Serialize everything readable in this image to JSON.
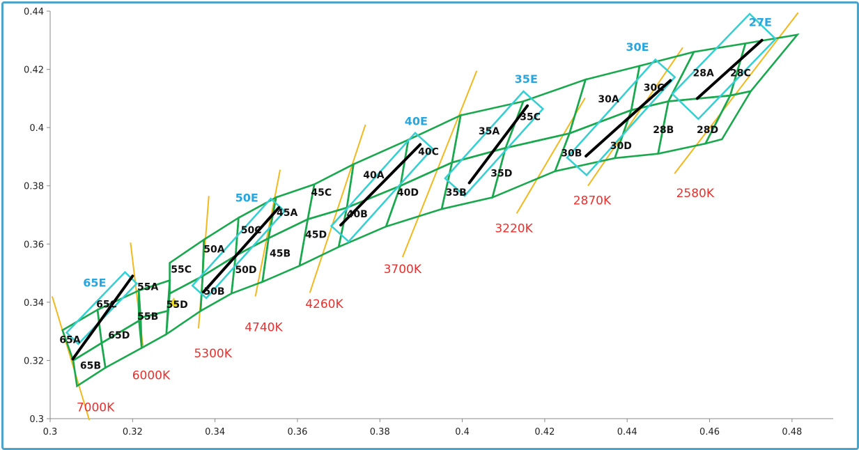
{
  "chart_data": {
    "type": "scatter",
    "title": "",
    "xlabel": "",
    "ylabel": "",
    "xlim": [
      0.3,
      0.49
    ],
    "ylim": [
      0.3,
      0.44
    ],
    "x_ticks": [
      "0.3",
      "0.32",
      "0.34",
      "0.36",
      "0.38",
      "0.4",
      "0.42",
      "0.44",
      "0.46",
      "0.48"
    ],
    "y_ticks": [
      "0.3",
      "0.32",
      "0.34",
      "0.36",
      "0.38",
      "0.4",
      "0.42",
      "0.44"
    ],
    "grid": false,
    "colors": {
      "quad": "#1aa84f",
      "ellipse": "#38cfd2",
      "cct_line": "#f2b81c",
      "cct_text": "#e8312f",
      "efficiency_text": "#27a6df",
      "bbl": "#000000",
      "marker": "#f4e31c"
    },
    "cct_lines": [
      {
        "label": "7000K",
        "p1": [
          0.3005,
          0.342
        ],
        "p2": [
          0.3095,
          0.2995
        ],
        "label_at": [
          0.311,
          0.304
        ]
      },
      {
        "label": "6000K",
        "p1": [
          0.3195,
          0.3605
        ],
        "p2": [
          0.3225,
          0.325
        ],
        "label_at": [
          0.3245,
          0.315
        ]
      },
      {
        "label": "5300K",
        "p1": [
          0.3385,
          0.3765
        ],
        "p2": [
          0.336,
          0.331
        ],
        "label_at": [
          0.3395,
          0.3225
        ]
      },
      {
        "label": "4740K",
        "p1": [
          0.3558,
          0.3855
        ],
        "p2": [
          0.3498,
          0.342
        ],
        "label_at": [
          0.3518,
          0.3315
        ]
      },
      {
        "label": "4260K",
        "p1": [
          0.3765,
          0.401
        ],
        "p2": [
          0.363,
          0.3432
        ],
        "label_at": [
          0.3665,
          0.3395
        ]
      },
      {
        "label": "3700K",
        "p1": [
          0.4035,
          0.4195
        ],
        "p2": [
          0.3855,
          0.3555
        ],
        "label_at": [
          0.3855,
          0.3515
        ]
      },
      {
        "label": "3220K",
        "p1": [
          0.4298,
          0.4102
        ],
        "p2": [
          0.4132,
          0.3705
        ],
        "label_at": [
          0.4125,
          0.3655
        ]
      },
      {
        "label": "2870K",
        "p1": [
          0.4535,
          0.4275
        ],
        "p2": [
          0.4305,
          0.38
        ],
        "label_at": [
          0.4315,
          0.375
        ]
      },
      {
        "label": "2580K",
        "p1": [
          0.4815,
          0.4395
        ],
        "p2": [
          0.4515,
          0.3842
        ],
        "label_at": [
          0.4565,
          0.3775
        ]
      }
    ],
    "quadrangles": [
      {
        "name": "65A",
        "points": [
          [
            0.303,
            0.3304
          ],
          [
            0.3115,
            0.3374
          ],
          [
            0.3125,
            0.326
          ],
          [
            0.3056,
            0.32
          ]
        ]
      },
      {
        "name": "65B",
        "points": [
          [
            0.3056,
            0.32
          ],
          [
            0.3125,
            0.326
          ],
          [
            0.3134,
            0.3175
          ],
          [
            0.3065,
            0.3112
          ]
        ]
      },
      {
        "name": "65C",
        "points": [
          [
            0.3115,
            0.3374
          ],
          [
            0.3215,
            0.344
          ],
          [
            0.322,
            0.334
          ],
          [
            0.3125,
            0.326
          ]
        ]
      },
      {
        "name": "65D",
        "points": [
          [
            0.3125,
            0.326
          ],
          [
            0.322,
            0.334
          ],
          [
            0.3222,
            0.3243
          ],
          [
            0.3134,
            0.3175
          ]
        ]
      },
      {
        "name": "55A",
        "points": [
          [
            0.3215,
            0.344
          ],
          [
            0.329,
            0.3475
          ],
          [
            0.3285,
            0.337
          ],
          [
            0.3215,
            0.3345
          ]
        ]
      },
      {
        "name": "55B",
        "points": [
          [
            0.3215,
            0.3345
          ],
          [
            0.3285,
            0.337
          ],
          [
            0.3282,
            0.329
          ],
          [
            0.3222,
            0.3243
          ]
        ]
      },
      {
        "name": "55C",
        "points": [
          [
            0.329,
            0.3535
          ],
          [
            0.3373,
            0.3615
          ],
          [
            0.337,
            0.349
          ],
          [
            0.329,
            0.343
          ]
        ]
      },
      {
        "name": "55D",
        "points": [
          [
            0.329,
            0.343
          ],
          [
            0.337,
            0.349
          ],
          [
            0.3365,
            0.337
          ],
          [
            0.3282,
            0.329
          ]
        ]
      },
      {
        "name": "50A",
        "points": [
          [
            0.3373,
            0.3615
          ],
          [
            0.3457,
            0.369
          ],
          [
            0.345,
            0.356
          ],
          [
            0.337,
            0.349
          ]
        ]
      },
      {
        "name": "50B",
        "points": [
          [
            0.337,
            0.349
          ],
          [
            0.345,
            0.356
          ],
          [
            0.344,
            0.343
          ],
          [
            0.3365,
            0.337
          ]
        ]
      },
      {
        "name": "50C",
        "points": [
          [
            0.3457,
            0.369
          ],
          [
            0.3548,
            0.376
          ],
          [
            0.353,
            0.362
          ],
          [
            0.345,
            0.356
          ]
        ]
      },
      {
        "name": "50D",
        "points": [
          [
            0.345,
            0.356
          ],
          [
            0.353,
            0.362
          ],
          [
            0.3515,
            0.347
          ],
          [
            0.344,
            0.343
          ]
        ]
      },
      {
        "name": "45A",
        "points": [
          [
            0.3548,
            0.376
          ],
          [
            0.3641,
            0.3805
          ],
          [
            0.3625,
            0.3685
          ],
          [
            0.353,
            0.362
          ]
        ]
      },
      {
        "name": "45B",
        "points": [
          [
            0.353,
            0.362
          ],
          [
            0.3625,
            0.3685
          ],
          [
            0.3605,
            0.3525
          ],
          [
            0.3515,
            0.347
          ]
        ]
      },
      {
        "name": "45C",
        "points": [
          [
            0.3641,
            0.3805
          ],
          [
            0.3736,
            0.3874
          ],
          [
            0.372,
            0.3725
          ],
          [
            0.3625,
            0.3685
          ]
        ]
      },
      {
        "name": "45D",
        "points": [
          [
            0.3625,
            0.3685
          ],
          [
            0.372,
            0.3725
          ],
          [
            0.37,
            0.359
          ],
          [
            0.3605,
            0.3525
          ]
        ]
      },
      {
        "name": "40A",
        "points": [
          [
            0.3736,
            0.3874
          ],
          [
            0.3869,
            0.3958
          ],
          [
            0.385,
            0.38
          ],
          [
            0.372,
            0.3725
          ]
        ]
      },
      {
        "name": "40B",
        "points": [
          [
            0.372,
            0.3725
          ],
          [
            0.385,
            0.38
          ],
          [
            0.3815,
            0.366
          ],
          [
            0.37,
            0.359
          ]
        ]
      },
      {
        "name": "40C",
        "points": [
          [
            0.3869,
            0.3958
          ],
          [
            0.3996,
            0.4042
          ],
          [
            0.3975,
            0.388
          ],
          [
            0.385,
            0.38
          ]
        ]
      },
      {
        "name": "40D",
        "points": [
          [
            0.385,
            0.38
          ],
          [
            0.3975,
            0.388
          ],
          [
            0.395,
            0.372
          ],
          [
            0.3815,
            0.366
          ]
        ]
      },
      {
        "name": "35A",
        "points": [
          [
            0.3996,
            0.4042
          ],
          [
            0.4148,
            0.409
          ],
          [
            0.4105,
            0.393
          ],
          [
            0.3975,
            0.388
          ]
        ]
      },
      {
        "name": "35B",
        "points": [
          [
            0.3975,
            0.388
          ],
          [
            0.4105,
            0.393
          ],
          [
            0.4073,
            0.376
          ],
          [
            0.395,
            0.372
          ]
        ]
      },
      {
        "name": "35C",
        "points": [
          [
            0.4148,
            0.409
          ],
          [
            0.4299,
            0.4165
          ],
          [
            0.426,
            0.398
          ],
          [
            0.4105,
            0.393
          ]
        ]
      },
      {
        "name": "35D",
        "points": [
          [
            0.4105,
            0.393
          ],
          [
            0.426,
            0.398
          ],
          [
            0.4225,
            0.385
          ],
          [
            0.4073,
            0.376
          ]
        ]
      },
      {
        "name": "30A",
        "points": [
          [
            0.4299,
            0.4165
          ],
          [
            0.443,
            0.4212
          ],
          [
            0.441,
            0.406
          ],
          [
            0.426,
            0.398
          ]
        ]
      },
      {
        "name": "30B",
        "points": [
          [
            0.426,
            0.398
          ],
          [
            0.441,
            0.406
          ],
          [
            0.437,
            0.3895
          ],
          [
            0.4225,
            0.385
          ]
        ]
      },
      {
        "name": "30C",
        "points": [
          [
            0.443,
            0.4212
          ],
          [
            0.4562,
            0.426
          ],
          [
            0.45,
            0.409
          ],
          [
            0.441,
            0.406
          ]
        ]
      },
      {
        "name": "30D",
        "points": [
          [
            0.441,
            0.406
          ],
          [
            0.45,
            0.409
          ],
          [
            0.4475,
            0.391
          ],
          [
            0.437,
            0.3895
          ]
        ]
      },
      {
        "name": "28A",
        "points": [
          [
            0.4562,
            0.426
          ],
          [
            0.4687,
            0.4289
          ],
          [
            0.465,
            0.411
          ],
          [
            0.45,
            0.409
          ]
        ]
      },
      {
        "name": "28B",
        "points": [
          [
            0.45,
            0.409
          ],
          [
            0.465,
            0.411
          ],
          [
            0.459,
            0.3945
          ],
          [
            0.4475,
            0.391
          ]
        ]
      },
      {
        "name": "28C",
        "points": [
          [
            0.4687,
            0.4289
          ],
          [
            0.4813,
            0.4319
          ],
          [
            0.47,
            0.4125
          ],
          [
            0.465,
            0.411
          ]
        ]
      },
      {
        "name": "28D",
        "points": [
          [
            0.465,
            0.411
          ],
          [
            0.47,
            0.4125
          ],
          [
            0.463,
            0.396
          ],
          [
            0.459,
            0.3945
          ]
        ]
      }
    ],
    "bin_labels": [
      {
        "text": "65A",
        "at": [
          0.3048,
          0.3272
        ]
      },
      {
        "text": "65B",
        "at": [
          0.3098,
          0.3183
        ]
      },
      {
        "text": "65C",
        "at": [
          0.3137,
          0.3394
        ]
      },
      {
        "text": "65D",
        "at": [
          0.3167,
          0.3287
        ]
      },
      {
        "text": "55A",
        "at": [
          0.3237,
          0.3453
        ]
      },
      {
        "text": "55B",
        "at": [
          0.3237,
          0.3352
        ]
      },
      {
        "text": "55C",
        "at": [
          0.3318,
          0.3513
        ]
      },
      {
        "text": "55D",
        "at": [
          0.3308,
          0.3393
        ]
      },
      {
        "text": "50A",
        "at": [
          0.3398,
          0.3583
        ]
      },
      {
        "text": "50B",
        "at": [
          0.3398,
          0.3438
        ]
      },
      {
        "text": "50C",
        "at": [
          0.3488,
          0.3648
        ]
      },
      {
        "text": "50D",
        "at": [
          0.3475,
          0.3512
        ]
      },
      {
        "text": "45A",
        "at": [
          0.3575,
          0.3708
        ]
      },
      {
        "text": "45B",
        "at": [
          0.3558,
          0.3568
        ]
      },
      {
        "text": "45C",
        "at": [
          0.3658,
          0.3778
        ]
      },
      {
        "text": "45D",
        "at": [
          0.3645,
          0.3633
        ]
      },
      {
        "text": "40A",
        "at": [
          0.3785,
          0.3838
        ]
      },
      {
        "text": "40B",
        "at": [
          0.3745,
          0.3703
        ]
      },
      {
        "text": "40C",
        "at": [
          0.3918,
          0.3918
        ]
      },
      {
        "text": "40D",
        "at": [
          0.3868,
          0.3778
        ]
      },
      {
        "text": "35A",
        "at": [
          0.4065,
          0.3988
        ]
      },
      {
        "text": "35B",
        "at": [
          0.3985,
          0.3778
        ]
      },
      {
        "text": "35C",
        "at": [
          0.4165,
          0.4038
        ]
      },
      {
        "text": "35D",
        "at": [
          0.4095,
          0.3843
        ]
      },
      {
        "text": "30A",
        "at": [
          0.4355,
          0.4098
        ]
      },
      {
        "text": "30B",
        "at": [
          0.4265,
          0.3913
        ]
      },
      {
        "text": "30C",
        "at": [
          0.4465,
          0.4138
        ]
      },
      {
        "text": "30D",
        "at": [
          0.4385,
          0.3938
        ]
      },
      {
        "text": "28A",
        "at": [
          0.4585,
          0.4188
        ]
      },
      {
        "text": "28B",
        "at": [
          0.4488,
          0.3993
        ]
      },
      {
        "text": "28C",
        "at": [
          0.4675,
          0.4188
        ]
      },
      {
        "text": "28D",
        "at": [
          0.4595,
          0.3993
        ]
      }
    ],
    "ellipses": [
      {
        "label": "65E",
        "center": [
          0.3125,
          0.338
        ],
        "a": 0.0102,
        "b": 0.0028,
        "angle_deg": -46,
        "label_at": [
          0.3108,
          0.3468
        ]
      },
      {
        "label": "50E",
        "center": [
          0.3457,
          0.3585
        ],
        "a": 0.0142,
        "b": 0.0032,
        "angle_deg": -48,
        "label_at": [
          0.3477,
          0.376
        ]
      },
      {
        "label": "40E",
        "center": [
          0.3805,
          0.3795
        ],
        "a": 0.0152,
        "b": 0.004,
        "angle_deg": -48,
        "label_at": [
          0.3888,
          0.4023
        ]
      },
      {
        "label": "35E",
        "center": [
          0.4077,
          0.3945
        ],
        "a": 0.0142,
        "b": 0.0045,
        "angle_deg": -48,
        "label_at": [
          0.4155,
          0.4168
        ]
      },
      {
        "label": "30E",
        "center": [
          0.4385,
          0.4035
        ],
        "a": 0.016,
        "b": 0.0045,
        "angle_deg": -48,
        "label_at": [
          0.4425,
          0.4278
        ]
      },
      {
        "label": "27E",
        "center": [
          0.4635,
          0.421
        ],
        "a": 0.0135,
        "b": 0.0062,
        "angle_deg": -46,
        "label_at": [
          0.4723,
          0.4363
        ]
      }
    ],
    "bbl_segments": [
      {
        "from": [
          0.3055,
          0.3205
        ],
        "to": [
          0.32,
          0.349
        ]
      },
      {
        "from": [
          0.3372,
          0.3435
        ],
        "to": [
          0.3555,
          0.3725
        ]
      },
      {
        "from": [
          0.3705,
          0.3665
        ],
        "to": [
          0.3898,
          0.3942
        ]
      },
      {
        "from": [
          0.4017,
          0.381
        ],
        "to": [
          0.4158,
          0.4075
        ]
      },
      {
        "from": [
          0.43,
          0.3902
        ],
        "to": [
          0.4505,
          0.4162
        ]
      },
      {
        "from": [
          0.457,
          0.41
        ],
        "to": [
          0.4727,
          0.43
        ]
      }
    ],
    "marker": {
      "at": [
        0.33,
        0.34
      ]
    }
  }
}
